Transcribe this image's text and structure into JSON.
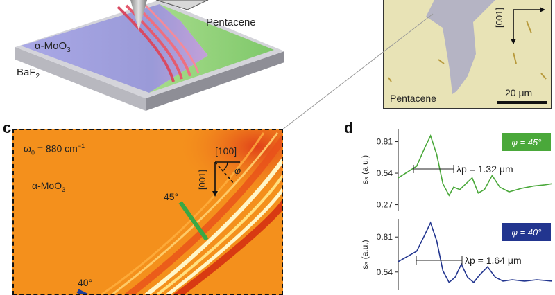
{
  "panels": {
    "a": {
      "materials": {
        "top": "Pentacene",
        "left": "α-MoO",
        "left_sub": "3",
        "bottom": "BaF",
        "bottom_sub": "2"
      }
    },
    "b": {
      "material_label": "Pentacene",
      "axis_label": "[001]",
      "scalebar_label": "20 μm"
    },
    "c": {
      "letter": "c",
      "freq_prefix": "ω",
      "freq_sub": "0",
      "freq_value": " = 880 cm",
      "freq_sup": "−1",
      "material": "α-MoO",
      "material_sub": "3",
      "axis_horizontal": "[100]",
      "axis_vertical": "[001]",
      "angle_symbol": "φ",
      "mark_45": "45°",
      "mark_40": "40°",
      "colors": {
        "background": "#f4901c",
        "line_45": "#3aa845",
        "line_40": "#1f3d9a"
      }
    },
    "d": {
      "letter": "d",
      "colors": {
        "green": "#4aa83a",
        "blue": "#22358f"
      }
    }
  },
  "chart_data": [
    {
      "type": "line",
      "panel": "d",
      "badge": "φ = 45°",
      "ylabel": "s₃ (a.u.)",
      "yticks": [
        "0.81",
        "0.54",
        "0.27"
      ],
      "ylim": [
        0.22,
        0.92
      ],
      "annotation": "λp = 1.32 μm",
      "series": [
        {
          "values": [
            {
              "x": 0.0,
              "y": 0.5
            },
            {
              "x": 0.06,
              "y": 0.55
            },
            {
              "x": 0.12,
              "y": 0.6
            },
            {
              "x": 0.17,
              "y": 0.75
            },
            {
              "x": 0.21,
              "y": 0.86
            },
            {
              "x": 0.25,
              "y": 0.7
            },
            {
              "x": 0.29,
              "y": 0.45
            },
            {
              "x": 0.33,
              "y": 0.35
            },
            {
              "x": 0.36,
              "y": 0.42
            },
            {
              "x": 0.4,
              "y": 0.4
            },
            {
              "x": 0.44,
              "y": 0.45
            },
            {
              "x": 0.48,
              "y": 0.5
            },
            {
              "x": 0.52,
              "y": 0.37
            },
            {
              "x": 0.56,
              "y": 0.4
            },
            {
              "x": 0.61,
              "y": 0.52
            },
            {
              "x": 0.66,
              "y": 0.42
            },
            {
              "x": 0.72,
              "y": 0.38
            },
            {
              "x": 0.8,
              "y": 0.41
            },
            {
              "x": 0.88,
              "y": 0.43
            },
            {
              "x": 0.95,
              "y": 0.44
            },
            {
              "x": 1.0,
              "y": 0.45
            }
          ]
        }
      ]
    },
    {
      "type": "line",
      "panel": "d",
      "badge": "φ = 40°",
      "ylabel": "s₃ (a.u.)",
      "yticks": [
        "0.81",
        "0.54"
      ],
      "ylim": [
        0.4,
        0.95
      ],
      "annotation": "λp = 1.64 μm",
      "series": [
        {
          "values": [
            {
              "x": 0.0,
              "y": 0.62
            },
            {
              "x": 0.06,
              "y": 0.66
            },
            {
              "x": 0.12,
              "y": 0.7
            },
            {
              "x": 0.17,
              "y": 0.82
            },
            {
              "x": 0.21,
              "y": 0.92
            },
            {
              "x": 0.25,
              "y": 0.78
            },
            {
              "x": 0.29,
              "y": 0.55
            },
            {
              "x": 0.33,
              "y": 0.46
            },
            {
              "x": 0.37,
              "y": 0.5
            },
            {
              "x": 0.41,
              "y": 0.6
            },
            {
              "x": 0.45,
              "y": 0.5
            },
            {
              "x": 0.49,
              "y": 0.46
            },
            {
              "x": 0.53,
              "y": 0.52
            },
            {
              "x": 0.58,
              "y": 0.58
            },
            {
              "x": 0.63,
              "y": 0.5
            },
            {
              "x": 0.68,
              "y": 0.47
            },
            {
              "x": 0.74,
              "y": 0.48
            },
            {
              "x": 0.82,
              "y": 0.47
            },
            {
              "x": 0.9,
              "y": 0.48
            },
            {
              "x": 1.0,
              "y": 0.47
            }
          ]
        }
      ]
    }
  ]
}
